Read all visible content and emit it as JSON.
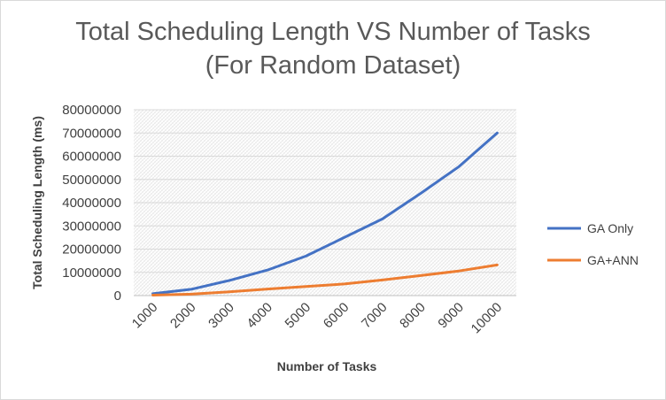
{
  "chart_data": {
    "type": "line",
    "title_line1": "Total Scheduling Length VS Number of Tasks",
    "title_line2": "(For Random Dataset)",
    "xlabel": "Number of Tasks",
    "ylabel": "Total Scheduling Length (ms)",
    "categories": [
      "1000",
      "2000",
      "3000",
      "4000",
      "5000",
      "6000",
      "7000",
      "8000",
      "9000",
      "10000"
    ],
    "ylim": [
      0,
      80000000
    ],
    "yticks": [
      0,
      10000000,
      20000000,
      30000000,
      40000000,
      50000000,
      60000000,
      70000000,
      80000000
    ],
    "ytick_labels": [
      "0",
      "10000000",
      "20000000",
      "30000000",
      "40000000",
      "50000000",
      "60000000",
      "70000000",
      "80000000"
    ],
    "grid": true,
    "legend_position": "right",
    "series": [
      {
        "name": "GA Only",
        "color": "#4472C4",
        "values": [
          800000,
          2700000,
          6500000,
          11000000,
          17000000,
          25000000,
          33000000,
          44000000,
          55500000,
          70000000
        ]
      },
      {
        "name": "GA+ANN",
        "color": "#ED7D31",
        "values": [
          200000,
          600000,
          1600000,
          2800000,
          3900000,
          5000000,
          6700000,
          8600000,
          10600000,
          13200000
        ]
      }
    ]
  }
}
